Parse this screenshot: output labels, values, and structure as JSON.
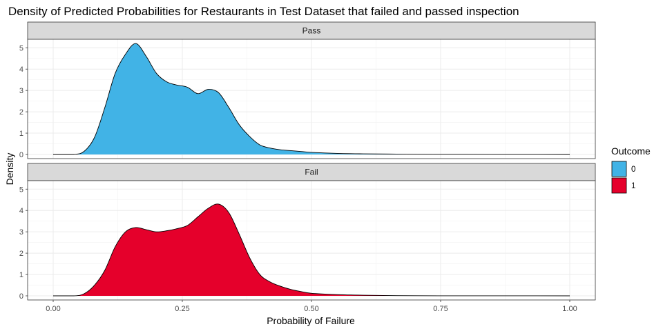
{
  "chart_data": {
    "type": "area",
    "title": "Density of Predicted Probabilities for Restaurants in Test Dataset that failed and passed inspection",
    "xlabel": "Probability of Failure",
    "ylabel": "Density",
    "xlim": [
      0,
      1
    ],
    "ylim": [
      0,
      5.3
    ],
    "x_ticks": [
      0,
      0.25,
      0.5,
      0.75,
      1.0
    ],
    "x_tick_labels": [
      "0.00",
      "0.25",
      "0.50",
      "0.75",
      "1.00"
    ],
    "y_ticks": [
      0,
      1,
      2,
      3,
      4,
      5
    ],
    "y_tick_labels": [
      "0",
      "1",
      "2",
      "3",
      "4",
      "5"
    ],
    "grid": true,
    "legend": {
      "title": "Outcome",
      "position": "right",
      "entries": [
        {
          "label": "0",
          "color": "#41B3E6"
        },
        {
          "label": "1",
          "color": "#E5002B"
        }
      ]
    },
    "panels": [
      {
        "strip": "Pass",
        "outcome": "0",
        "color": "#41B3E6",
        "x": [
          0,
          0.04,
          0.06,
          0.08,
          0.1,
          0.12,
          0.14,
          0.16,
          0.18,
          0.2,
          0.22,
          0.24,
          0.26,
          0.28,
          0.3,
          0.32,
          0.34,
          0.36,
          0.38,
          0.4,
          0.42,
          0.44,
          0.46,
          0.48,
          0.5,
          0.55,
          0.6,
          0.65,
          0.7,
          0.8,
          0.9,
          1.0
        ],
        "y": [
          0,
          0,
          0.15,
          0.8,
          2.2,
          3.8,
          4.7,
          5.2,
          4.6,
          3.8,
          3.4,
          3.25,
          3.15,
          2.85,
          3.05,
          2.9,
          2.2,
          1.4,
          0.85,
          0.45,
          0.3,
          0.22,
          0.18,
          0.14,
          0.1,
          0.05,
          0.03,
          0.02,
          0.01,
          0.005,
          0.002,
          0
        ]
      },
      {
        "strip": "Fail",
        "outcome": "1",
        "color": "#E5002B",
        "x": [
          0,
          0.04,
          0.06,
          0.08,
          0.1,
          0.12,
          0.14,
          0.16,
          0.18,
          0.2,
          0.22,
          0.24,
          0.26,
          0.28,
          0.3,
          0.32,
          0.34,
          0.36,
          0.38,
          0.4,
          0.42,
          0.44,
          0.46,
          0.48,
          0.5,
          0.55,
          0.6,
          0.65,
          0.7,
          0.8,
          0.9,
          1.0
        ],
        "y": [
          0,
          0,
          0.1,
          0.5,
          1.2,
          2.3,
          3.0,
          3.2,
          3.1,
          3.0,
          3.05,
          3.15,
          3.3,
          3.7,
          4.1,
          4.3,
          3.9,
          2.9,
          1.8,
          1.0,
          0.65,
          0.45,
          0.3,
          0.2,
          0.12,
          0.06,
          0.03,
          0.015,
          0.005,
          0.002,
          0.001,
          0
        ]
      }
    ]
  }
}
